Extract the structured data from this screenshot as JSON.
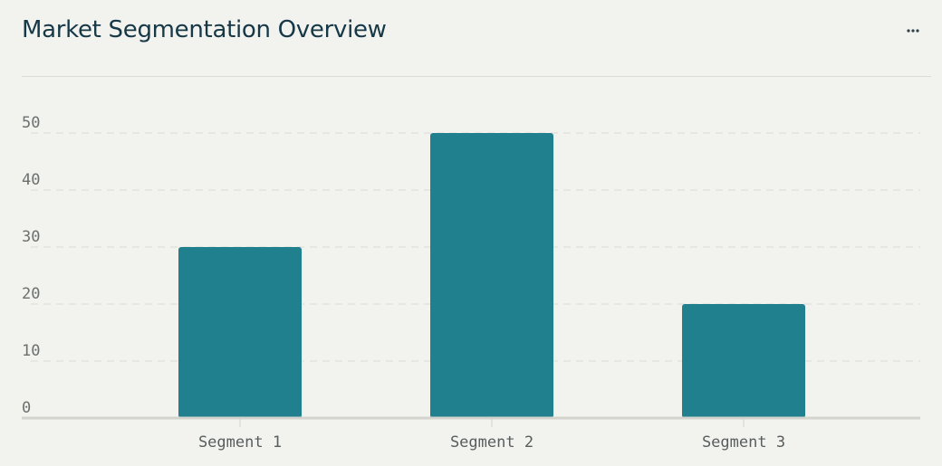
{
  "header": {
    "title": "Market Segmentation Overview",
    "more_icon": "more-horizontal-icon"
  },
  "colors": {
    "bar": "#21808d",
    "grid": "#dcdcd7",
    "axis": "#d4d4cf",
    "title": "#163847",
    "background": "#f2f2ee"
  },
  "chart_data": {
    "type": "bar",
    "categories": [
      "Segment 1",
      "Segment 2",
      "Segment 3"
    ],
    "values": [
      30,
      50,
      20
    ],
    "yticks": [
      "0",
      "10",
      "20",
      "30",
      "40",
      "50"
    ],
    "ylim": [
      0,
      50
    ],
    "grid": true,
    "legend": "none"
  }
}
